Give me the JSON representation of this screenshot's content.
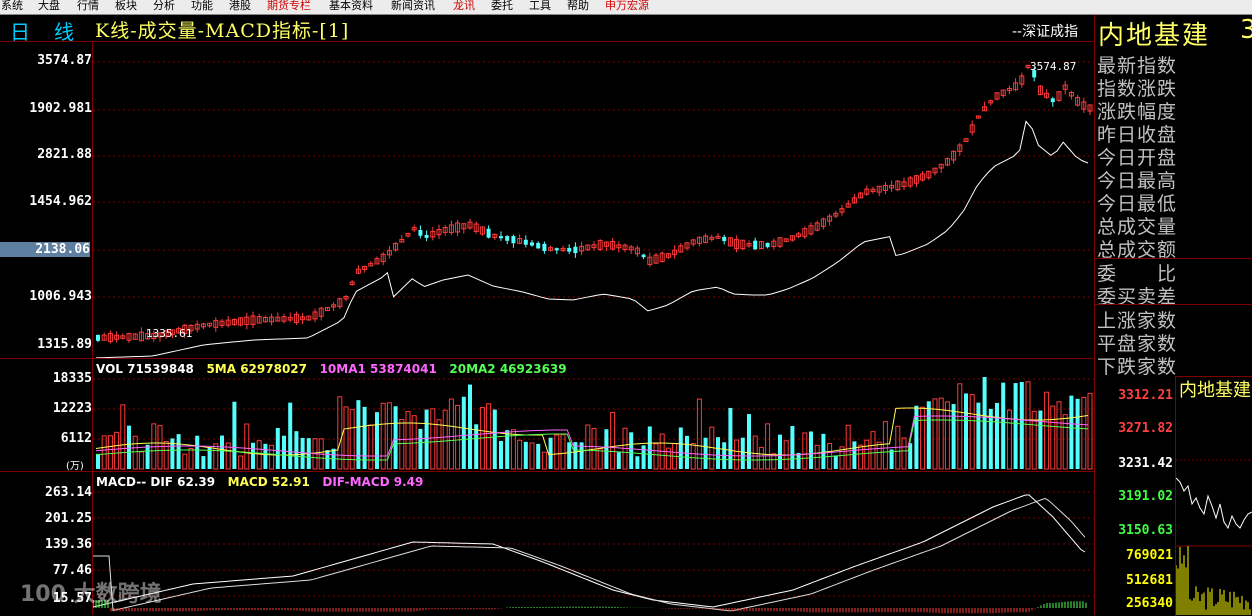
{
  "menu": [
    "系统",
    "大盘",
    "行情",
    "板块",
    "分析",
    "功能",
    "港股",
    "期货专栏",
    "基本资料",
    "新闻资讯",
    "龙讯",
    "委托",
    "工具",
    "帮助",
    "申万宏源"
  ],
  "header": {
    "period": "日",
    "period2": "线",
    "title": "K线-成交量-MACD指标-[1]",
    "exchange": "--深证成指",
    "index_name": "内地基建",
    "index_code_partial": "3"
  },
  "price_axis": [
    "3574.87",
    "1902.981",
    "2821.88",
    "1454.962",
    "2138.06",
    "1006.943",
    "1315.89"
  ],
  "price_highlight": "2138.06",
  "annotations": {
    "high_label": "3574.87",
    "low_label": "1335.61"
  },
  "vol": {
    "axis": [
      "18335",
      "12223",
      "6112"
    ],
    "unit": "(万)",
    "legend": [
      {
        "label": "VOL 71539848",
        "color": "#ffffff"
      },
      {
        "label": "5MA 62978027",
        "color": "#ffff00"
      },
      {
        "label": "10MA1 53874041",
        "color": "#ff55ff"
      },
      {
        "label": "20MA2 46923639",
        "color": "#55ff55"
      }
    ]
  },
  "macd": {
    "axis": [
      "263.14",
      "201.25",
      "139.36",
      "77.46",
      "15.57"
    ],
    "legend": [
      {
        "label": "MACD-- DIF 62.39",
        "color": "#ffffff"
      },
      {
        "label": "MACD 52.91",
        "color": "#ffff00"
      },
      {
        "label": "DIF-MACD 9.49",
        "color": "#ff55ff"
      }
    ]
  },
  "summary_fields": [
    "最新指数",
    "指数涨跌",
    "涨跌幅度",
    "昨日收盘",
    "今日开盘",
    "今日最高",
    "今日最低",
    "总成交量",
    "总成交额",
    "委　　比",
    "委买卖差",
    "上涨家数",
    "平盘家数",
    "下跌家数"
  ],
  "mini_chart": {
    "title": "内地基建",
    "ticks": [
      {
        "label": "3312.21",
        "color": "#ff4040"
      },
      {
        "label": "3271.82",
        "color": "#ff4040"
      },
      {
        "label": "3231.42",
        "color": "#ffffff"
      },
      {
        "label": "3191.02",
        "color": "#40ff40"
      },
      {
        "label": "3150.63",
        "color": "#40ff40"
      },
      {
        "label": "769021",
        "color": "#ffff00"
      },
      {
        "label": "512681",
        "color": "#ffff00"
      },
      {
        "label": "256340",
        "color": "#ffff00"
      }
    ]
  },
  "watermark": "100 大数跨境",
  "colors": {
    "up": "#ff3a3a",
    "down": "#54ffff",
    "frame": "#800000",
    "label": "#c0c0c0"
  }
}
